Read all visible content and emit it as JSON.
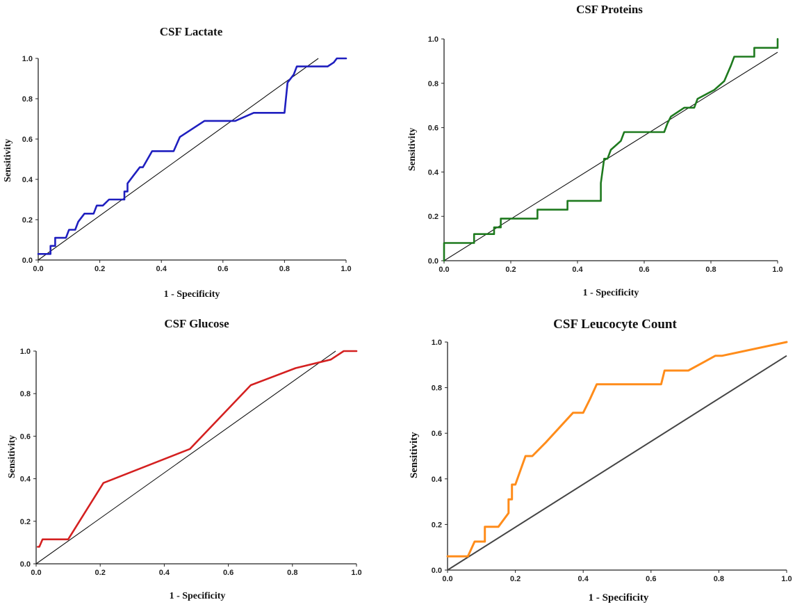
{
  "chart_data": [
    {
      "type": "line",
      "title": "CSF Lactate",
      "xlabel": "1 - Specificity",
      "ylabel": "Sensitivity",
      "xlim": [
        0,
        1
      ],
      "ylim": [
        0,
        1
      ],
      "x_ticks": [
        "0.0",
        "0.2",
        "0.4",
        "0.6",
        "0.8",
        "1.0"
      ],
      "y_ticks": [
        "0.0",
        "0.2",
        "0.4",
        "0.6",
        "0.8",
        "1.0"
      ],
      "grid": false,
      "color": "#1f1fbf",
      "reference_line": [
        [
          0,
          0
        ],
        [
          0.91,
          1.0
        ]
      ],
      "series": [
        {
          "x": [
            0,
            0.04,
            0.04,
            0.045,
            0.055,
            0.055,
            0.08,
            0.09,
            0.1,
            0.11,
            0.12,
            0.13,
            0.15,
            0.17,
            0.18,
            0.19,
            0.2,
            0.21,
            0.23,
            0.24,
            0.28,
            0.28,
            0.29,
            0.29,
            0.31,
            0.33,
            0.34,
            0.37,
            0.44,
            0.46,
            0.54,
            0.64,
            0.7,
            0.8,
            0.81,
            0.83,
            0.84,
            0.94,
            0.96,
            0.97,
            1.0
          ],
          "y": [
            0.03,
            0.03,
            0.07,
            0.07,
            0.07,
            0.11,
            0.11,
            0.11,
            0.15,
            0.15,
            0.15,
            0.19,
            0.23,
            0.23,
            0.23,
            0.27,
            0.27,
            0.27,
            0.3,
            0.3,
            0.3,
            0.34,
            0.34,
            0.38,
            0.42,
            0.46,
            0.46,
            0.54,
            0.54,
            0.61,
            0.69,
            0.69,
            0.73,
            0.73,
            0.88,
            0.92,
            0.96,
            0.96,
            0.98,
            1.0,
            1.0
          ]
        }
      ]
    },
    {
      "type": "line",
      "title": "CSF Proteins",
      "xlabel": "1 - Specificity",
      "ylabel": "Sensitivity",
      "xlim": [
        0,
        1
      ],
      "ylim": [
        0,
        1
      ],
      "x_ticks": [
        "0.0",
        "0.2",
        "0.4",
        "0.6",
        "0.8",
        "1.0"
      ],
      "y_ticks": [
        "0.0",
        "0.2",
        "0.4",
        "0.6",
        "0.8",
        "1.0"
      ],
      "grid": false,
      "color": "#1e7a1e",
      "reference_line": [
        [
          0,
          0
        ],
        [
          1.0,
          0.94
        ]
      ],
      "series": [
        {
          "x": [
            0,
            0,
            0.09,
            0.09,
            0.15,
            0.15,
            0.16,
            0.17,
            0.17,
            0.2,
            0.28,
            0.28,
            0.37,
            0.37,
            0.47,
            0.47,
            0.48,
            0.49,
            0.5,
            0.53,
            0.54,
            0.66,
            0.67,
            0.68,
            0.72,
            0.75,
            0.76,
            0.81,
            0.84,
            0.86,
            0.87,
            0.93,
            0.93,
            1.0,
            1.0
          ],
          "y": [
            0,
            0.08,
            0.08,
            0.12,
            0.12,
            0.15,
            0.15,
            0.15,
            0.19,
            0.19,
            0.19,
            0.23,
            0.23,
            0.27,
            0.27,
            0.35,
            0.46,
            0.46,
            0.5,
            0.54,
            0.58,
            0.58,
            0.62,
            0.65,
            0.69,
            0.69,
            0.73,
            0.77,
            0.81,
            0.88,
            0.92,
            0.92,
            0.96,
            0.96,
            1.0
          ]
        }
      ]
    },
    {
      "type": "line",
      "title": "CSF Glucose",
      "xlabel": "1 - Specificity",
      "ylabel": "Sensitivity",
      "xlim": [
        0,
        1
      ],
      "ylim": [
        0,
        1
      ],
      "x_ticks": [
        "0.0",
        "0.2",
        "0.4",
        "0.6",
        "0.8",
        "1.0"
      ],
      "y_ticks": [
        "0.0",
        "0.2",
        "0.4",
        "0.6",
        "0.8",
        "1.0"
      ],
      "grid": false,
      "color": "#d42020",
      "reference_line": [
        [
          0,
          0
        ],
        [
          0.935,
          1.0
        ]
      ],
      "series": [
        {
          "x": [
            0.005,
            0.01,
            0.02,
            0.1,
            0.21,
            0.48,
            0.67,
            0.81,
            0.92,
            0.96,
            1.0
          ],
          "y": [
            0.08,
            0.08,
            0.115,
            0.115,
            0.38,
            0.54,
            0.84,
            0.92,
            0.96,
            1.0,
            1.0
          ]
        }
      ]
    },
    {
      "type": "line",
      "title": "CSF Leucocyte Count",
      "xlabel": "1 - Specificity",
      "ylabel": "Sensitivity",
      "xlim": [
        0,
        1
      ],
      "ylim": [
        0,
        1
      ],
      "x_ticks": [
        "0.0",
        "0.2",
        "0.4",
        "0.6",
        "0.8",
        "1.0"
      ],
      "y_ticks": [
        "0.0",
        "0.2",
        "0.4",
        "0.6",
        "0.8",
        "1.0"
      ],
      "grid": false,
      "color": "#ff8c1a",
      "reference_line": [
        [
          0,
          0
        ],
        [
          1.0,
          0.94
        ]
      ],
      "series": [
        {
          "x": [
            0,
            0.06,
            0.08,
            0.11,
            0.11,
            0.15,
            0.18,
            0.18,
            0.19,
            0.19,
            0.2,
            0.23,
            0.25,
            0.29,
            0.37,
            0.4,
            0.42,
            0.44,
            0.63,
            0.64,
            0.71,
            0.79,
            0.81,
            1.0
          ],
          "y": [
            0.06,
            0.06,
            0.125,
            0.125,
            0.19,
            0.19,
            0.25,
            0.31,
            0.31,
            0.375,
            0.375,
            0.5,
            0.5,
            0.56,
            0.69,
            0.69,
            0.75,
            0.815,
            0.815,
            0.875,
            0.875,
            0.94,
            0.94,
            1.0
          ]
        }
      ]
    }
  ]
}
